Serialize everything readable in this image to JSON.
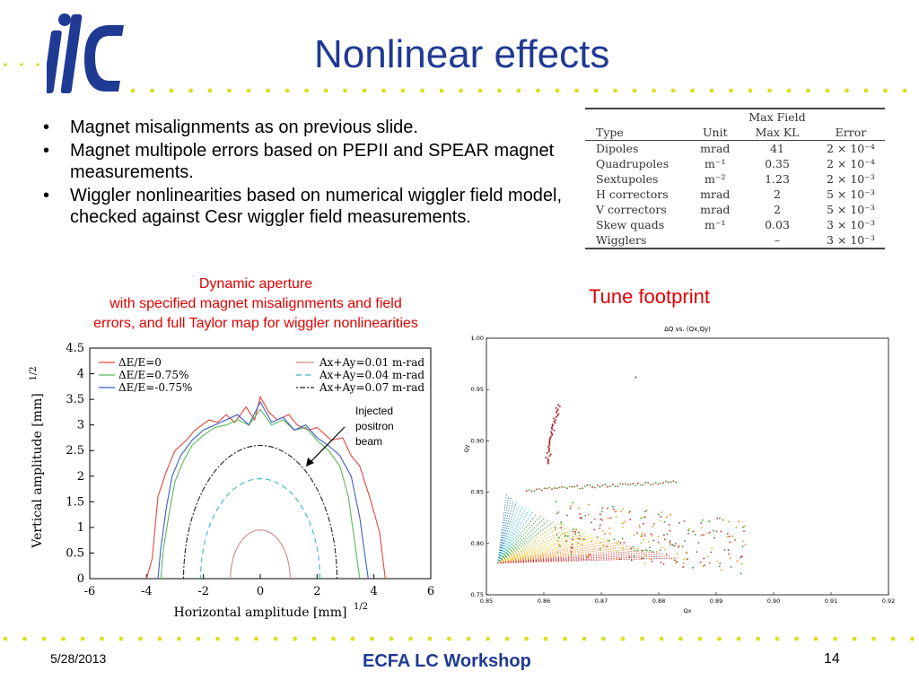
{
  "slide": {
    "title": "Nonlinear effects",
    "logo_text": "ilc",
    "bullets": [
      "Magnet misalignments as on previous slide.",
      "Magnet multipole errors based on PEPII and SPEAR magnet measurements.",
      "Wiggler nonlinearities based on numerical wiggler field model, checked against Cesr wiggler field measurements."
    ],
    "colors": {
      "title": "#1f3a93",
      "accent_dots": "#d9e021",
      "caption": "#e00000"
    }
  },
  "error_table": {
    "header_top": "Max Field",
    "columns": [
      "Type",
      "Unit",
      "Max KL",
      "Error"
    ],
    "rows": [
      [
        "Dipoles",
        "mrad",
        "41",
        "2 × 10⁻⁴"
      ],
      [
        "Quadrupoles",
        "m⁻¹",
        "0.35",
        "2 × 10⁻⁴"
      ],
      [
        "Sextupoles",
        "m⁻²",
        "1.23",
        "2 × 10⁻³"
      ],
      [
        "H correctors",
        "mrad",
        "2",
        "5 × 10⁻³"
      ],
      [
        "V correctors",
        "mrad",
        "2",
        "5 × 10⁻³"
      ],
      [
        "Skew quads",
        "m⁻¹",
        "0.03",
        "3 × 10⁻³"
      ],
      [
        "Wigglers",
        "",
        "–",
        "3 × 10⁻³"
      ]
    ]
  },
  "dynamic_aperture": {
    "caption_lines": [
      "Dynamic aperture",
      "with specified magnet misalignments and field",
      "errors, and full Taylor map for wiggler nonlinearities"
    ],
    "annotation": [
      "Injected",
      "positron",
      "beam"
    ]
  },
  "tune": {
    "label": "Tune footprint"
  },
  "footer": {
    "date": "5/28/2013",
    "center": "ECFA LC Workshop",
    "page": "14"
  },
  "chart_data": [
    {
      "type": "line",
      "xlabel": "Horizontal amplitude [mm]",
      "xlabel_sup": "1/2",
      "ylabel": "Vertical amplitude [mm]",
      "ylabel_sup": "1/2",
      "xlim": [
        -6,
        6
      ],
      "ylim": [
        0,
        4.5
      ],
      "xticks": [
        "-6",
        "-4",
        "-2",
        "0",
        "2",
        "4",
        "6"
      ],
      "yticks": [
        "0",
        "0.5",
        "1",
        "1.5",
        "2",
        "2.5",
        "3",
        "3.5",
        "4",
        "4.5"
      ],
      "legend_left": [
        {
          "name": "ΔE/E=0",
          "color": "#e8443a"
        },
        {
          "name": "ΔE/E=0.75%",
          "color": "#5cb85c"
        },
        {
          "name": "ΔE/E=-0.75%",
          "color": "#3b5fc9"
        }
      ],
      "legend_right": [
        {
          "name": "Ax+Ay=0.01 m-rad",
          "color": "#c98a8a",
          "dash": ""
        },
        {
          "name": "Ax+Ay=0.04 m-rad",
          "color": "#3cb8c0",
          "dash": "6,4"
        },
        {
          "name": "Ax+Ay=0.07 m-rad",
          "color": "#222222",
          "dash": "2,2,6,2"
        }
      ],
      "series": [
        {
          "name": "ΔE/E=0",
          "color": "#e8443a",
          "x": [
            -4.0,
            -3.8,
            -3.7,
            -3.6,
            -3.3,
            -3.0,
            -2.6,
            -2.3,
            -1.8,
            -1.5,
            -1.2,
            -0.9,
            -0.5,
            -0.2,
            0.0,
            0.3,
            0.6,
            1.0,
            1.3,
            1.7,
            2.0,
            2.5,
            2.9,
            3.2,
            3.5,
            3.9,
            4.2,
            4.4
          ],
          "y": [
            0.0,
            0.4,
            1.0,
            1.6,
            2.1,
            2.5,
            2.7,
            2.9,
            3.1,
            3.05,
            3.2,
            3.05,
            3.35,
            3.1,
            3.55,
            3.25,
            3.1,
            3.2,
            3.0,
            2.9,
            2.95,
            2.7,
            2.75,
            2.4,
            2.2,
            1.5,
            0.9,
            0.0
          ]
        },
        {
          "name": "ΔE/E=0.75%",
          "color": "#5cb85c",
          "x": [
            -3.5,
            -3.4,
            -3.2,
            -3.0,
            -2.7,
            -2.4,
            -2.0,
            -1.6,
            -1.2,
            -0.8,
            -0.4,
            0.0,
            0.4,
            0.8,
            1.2,
            1.6,
            2.0,
            2.4,
            2.8,
            3.1,
            3.3,
            3.5
          ],
          "y": [
            0.0,
            0.6,
            1.3,
            1.9,
            2.3,
            2.6,
            2.8,
            2.95,
            3.0,
            3.1,
            3.0,
            3.3,
            3.0,
            3.1,
            2.9,
            2.95,
            2.7,
            2.5,
            2.2,
            1.6,
            0.8,
            0.0
          ]
        },
        {
          "name": "ΔE/E=-0.75%",
          "color": "#3b5fc9",
          "x": [
            -3.6,
            -3.5,
            -3.3,
            -3.1,
            -2.8,
            -2.4,
            -2.0,
            -1.6,
            -1.2,
            -0.8,
            -0.4,
            0.0,
            0.4,
            0.8,
            1.2,
            1.6,
            2.0,
            2.4,
            2.8,
            3.2,
            3.5,
            3.8
          ],
          "y": [
            0.0,
            0.6,
            1.4,
            2.0,
            2.4,
            2.7,
            2.9,
            3.0,
            3.1,
            3.2,
            3.0,
            3.45,
            3.05,
            3.15,
            2.9,
            3.0,
            2.75,
            2.6,
            2.4,
            2.0,
            1.2,
            0.0
          ]
        }
      ],
      "ellipses": [
        {
          "name": "Ax+Ay=0.01 m-rad",
          "a": 1.05,
          "b": 0.95
        },
        {
          "name": "Ax+Ay=0.04 m-rad",
          "a": 2.1,
          "b": 1.95
        },
        {
          "name": "Ax+Ay=0.07 m-rad",
          "a": 2.7,
          "b": 2.6
        }
      ]
    },
    {
      "type": "scatter",
      "title": "ΔQ vs. (Qx,Qy)",
      "xlabel": "Qx",
      "ylabel": "Qy",
      "xlim": [
        0.85,
        0.92
      ],
      "ylim": [
        0.75,
        1.0
      ],
      "xticks": [
        "0.85",
        "0.86",
        "0.87",
        "0.88",
        "0.89",
        "0.90",
        "0.91",
        "0.92"
      ],
      "yticks": [
        "0.75",
        "0.80",
        "0.85",
        "0.90",
        "0.95",
        "1.00"
      ],
      "regions": [
        {
          "x0": 0.852,
          "y0": 0.781,
          "x1": 0.878,
          "y1": 0.85,
          "color": "#1ca9c9"
        },
        {
          "x0": 0.858,
          "y0": 0.795,
          "x1": 0.884,
          "y1": 0.852,
          "color": "#f2c12e"
        },
        {
          "x0": 0.862,
          "y0": 0.788,
          "x1": 0.886,
          "y1": 0.81,
          "color": "#e05a2a"
        }
      ]
    }
  ]
}
